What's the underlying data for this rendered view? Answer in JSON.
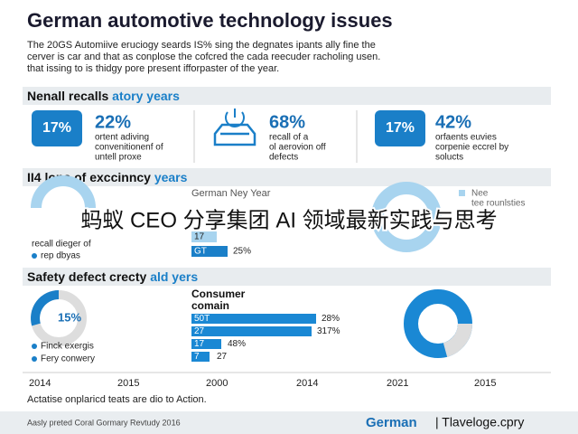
{
  "header": {
    "title": "German automotive technology issues",
    "intro": [
      "The 20GS Automiive eruciogy seards IS% sing the degnates ipants ally fine the",
      "cerver is car and that as conplose the cofcred the cada reecuder racholing usen.",
      "that issing to is thidgy pore present ifforpaster of the year."
    ]
  },
  "sections": [
    {
      "heading": "Nenall recalls ",
      "highlight": "atory years",
      "stats": [
        {
          "icon": "17%",
          "value": "22%",
          "desc": [
            "ortent adiving",
            "convenitionenf of",
            "untell proxe"
          ]
        },
        {
          "value": "68%",
          "desc": [
            "recall of a",
            "ol aerovion off",
            "defects"
          ]
        },
        {
          "icon": "17%",
          "value": "42%",
          "desc": [
            "orfaents euvies",
            "corpenie eccrel by",
            "solucts"
          ]
        }
      ]
    },
    {
      "heading": "II4 lons of exccinncy ",
      "highlight": "years",
      "left": {
        "label": "recall dieger of",
        "legend": "rep dbyas"
      },
      "middle": {
        "title": "German Ney Year",
        "rows": [
          {
            "label": "17"
          },
          {
            "label": "GT",
            "value": "25%"
          }
        ]
      },
      "right": {
        "legend": [
          "Nee",
          "tee rounlsties"
        ]
      }
    },
    {
      "heading": "Safety defect crecty ",
      "highlight": "ald yers",
      "donut": "15%",
      "legend": [
        "Finck exergis",
        "Fery conwery"
      ],
      "bars": {
        "title": [
          "Consumer",
          "comain"
        ],
        "rows": [
          {
            "label": "50T",
            "value": "28%"
          },
          {
            "label": "27",
            "value": "317%"
          },
          {
            "label": "17",
            "value": "48%"
          },
          {
            "label": "7",
            "value": "27"
          }
        ]
      }
    }
  ],
  "overlay": "蚂蚁 CEO 分享集团 AI 领域最新实践与思考",
  "years": [
    "2014",
    "2015",
    "2000",
    "2014",
    "2021",
    "2015"
  ],
  "footnote": "Actatise onplaricd teats are dio to Action.",
  "footer": {
    "source": "Aasly preted Coral Gormary Revtudy 2016",
    "brand": "German",
    "site": "| Tlaveloge.cpry"
  }
}
